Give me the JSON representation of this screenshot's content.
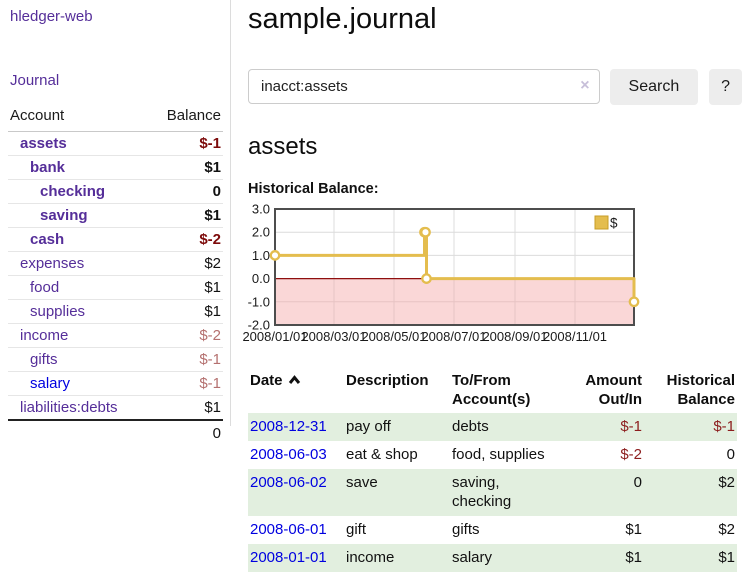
{
  "sidebar": {
    "brand": "hledger-web",
    "nav": {
      "journal": "Journal"
    },
    "accounts_table": {
      "account_header": "Account",
      "balance_header": "Balance",
      "rows": [
        {
          "name": "assets",
          "indent": 1,
          "bold": true,
          "balance": "$-1",
          "negative": "strong",
          "link": "purple"
        },
        {
          "name": "bank",
          "indent": 2,
          "bold": true,
          "balance": "$1",
          "negative": null,
          "link": "purple"
        },
        {
          "name": "checking",
          "indent": 3,
          "bold": true,
          "balance": "0",
          "negative": null,
          "link": "purple"
        },
        {
          "name": "saving",
          "indent": 3,
          "bold": true,
          "balance": "$1",
          "negative": null,
          "link": "purple"
        },
        {
          "name": "cash",
          "indent": 2,
          "bold": true,
          "balance": "$-2",
          "negative": "strong",
          "link": "purple"
        },
        {
          "name": "expenses",
          "indent": 1,
          "bold": false,
          "balance": "$2",
          "negative": null,
          "link": "purple"
        },
        {
          "name": "food",
          "indent": 2,
          "bold": false,
          "balance": "$1",
          "negative": null,
          "link": "purple"
        },
        {
          "name": "supplies",
          "indent": 2,
          "bold": false,
          "balance": "$1",
          "negative": null,
          "link": "purple"
        },
        {
          "name": "income",
          "indent": 1,
          "bold": false,
          "balance": "$-2",
          "negative": "soft",
          "link": "purple"
        },
        {
          "name": "gifts",
          "indent": 2,
          "bold": false,
          "balance": "$-1",
          "negative": "soft",
          "link": "purple"
        },
        {
          "name": "salary",
          "indent": 2,
          "bold": false,
          "balance": "$-1",
          "negative": "soft",
          "link": "blue"
        },
        {
          "name": "liabilities:debts",
          "indent": 1,
          "bold": false,
          "balance": "$1",
          "negative": null,
          "link": "purple"
        }
      ],
      "total": "0"
    }
  },
  "main": {
    "title": "sample.journal",
    "search": {
      "query": "inacct:assets",
      "clear_label": "×",
      "button_label": "Search",
      "help_label": "?"
    },
    "account_heading": "assets",
    "chart_heading": "Historical Balance:"
  },
  "chart_data": {
    "type": "line",
    "step": true,
    "title": "Historical Balance:",
    "series": [
      {
        "name": "$",
        "points": [
          [
            "2008-01-01",
            1
          ],
          [
            "2008-06-01",
            2
          ],
          [
            "2008-06-02",
            2
          ],
          [
            "2008-06-03",
            0
          ],
          [
            "2008-12-31",
            -1
          ]
        ]
      }
    ],
    "x_start": "2008-01-01",
    "x_end": "2008-12-31",
    "ylim": [
      -2,
      3
    ],
    "yticks": [
      {
        "v": 3,
        "label": "3.0"
      },
      {
        "v": 2,
        "label": "2.0"
      },
      {
        "v": 1,
        "label": "1.0"
      },
      {
        "v": 0,
        "label": "0.0"
      },
      {
        "v": -1,
        "label": "-1.0"
      },
      {
        "v": -2,
        "label": "-2.0"
      }
    ],
    "xticks": [
      {
        "date": "2008-01-01",
        "label": "2008/01/01"
      },
      {
        "date": "2008-03-01",
        "label": "2008/03/01"
      },
      {
        "date": "2008-05-01",
        "label": "2008/05/01"
      },
      {
        "date": "2008-07-01",
        "label": "2008/07/01"
      },
      {
        "date": "2008-09-01",
        "label": "2008/09/01"
      },
      {
        "date": "2008-11-01",
        "label": "2008/11/01"
      }
    ],
    "grid": true,
    "legend_position": "top-right",
    "legend_label": "$"
  },
  "register": {
    "headers": {
      "date": "Date",
      "description": "Description",
      "accounts": "To/From Account(s)",
      "amount": "Amount Out/In",
      "balance": "Historical Balance"
    },
    "rows": [
      {
        "date": "2008-12-31",
        "description": "pay off",
        "accounts": "debts",
        "amount": "$-1",
        "amount_negative": true,
        "balance": "$-1",
        "balance_negative": true
      },
      {
        "date": "2008-06-03",
        "description": "eat & shop",
        "accounts": "food, supplies",
        "amount": "$-2",
        "amount_negative": true,
        "balance": "0",
        "balance_negative": false
      },
      {
        "date": "2008-06-02",
        "description": "save",
        "accounts": "saving, checking",
        "amount": "0",
        "amount_negative": false,
        "balance": "$2",
        "balance_negative": false
      },
      {
        "date": "2008-06-01",
        "description": "gift",
        "accounts": "gifts",
        "amount": "$1",
        "amount_negative": false,
        "balance": "$2",
        "balance_negative": false
      },
      {
        "date": "2008-01-01",
        "description": "income",
        "accounts": "salary",
        "amount": "$1",
        "amount_negative": false,
        "balance": "$1",
        "balance_negative": false
      }
    ]
  },
  "colors": {
    "link_purple": "#552e99",
    "link_blue": "#0000e0",
    "negative_strong": "#7d0b0b",
    "negative_soft": "#b4706f",
    "negative_table": "#8c1d1d",
    "row_stripe_green": "#e2efdf",
    "border_gray": "#dcdcdc",
    "chart_gold": "#e4bd4e",
    "chart_gold_border": "#c79d27",
    "chart_negative_fill": "#f3a6a6",
    "chart_zero_line": "#8f0f0f",
    "chart_plot_border": "#4d4d4d",
    "chart_gridline": "#dcdcdc"
  }
}
